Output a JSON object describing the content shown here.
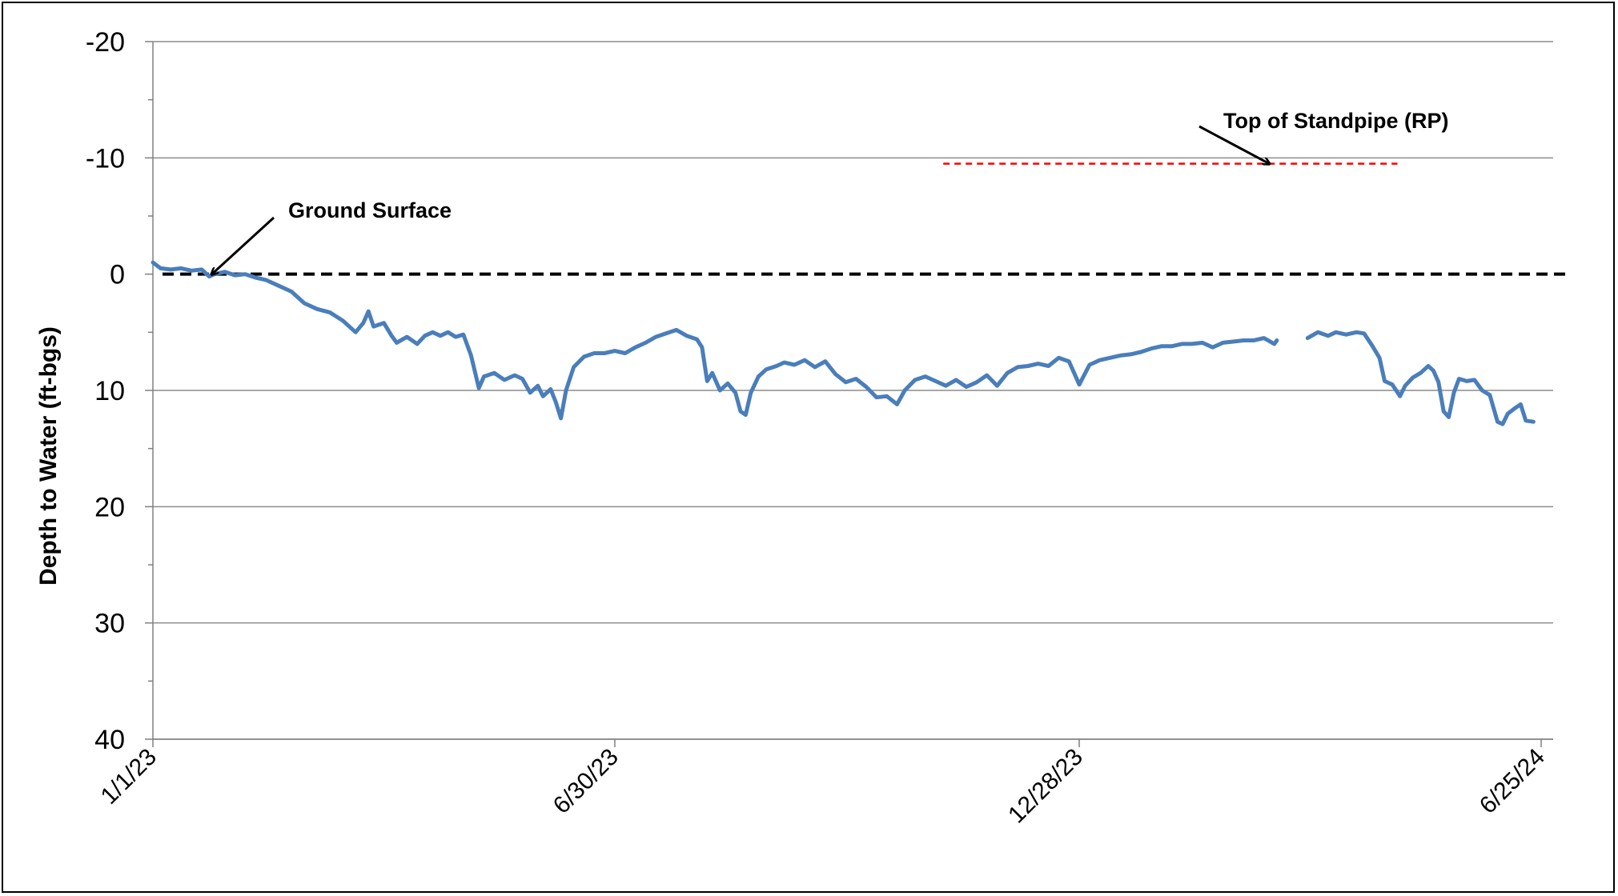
{
  "chart_data": {
    "type": "line",
    "title": "",
    "xlabel": "",
    "ylabel": "Depth to Water (ft-bgs)",
    "y_inverted": true,
    "ylim": [
      -20,
      40
    ],
    "yticks": [
      -20,
      -10,
      0,
      10,
      20,
      30,
      40
    ],
    "x_range": [
      "2023-01-01",
      "2024-06-25"
    ],
    "xticks": [
      {
        "date": "2023-01-01",
        "label": "1/1/23"
      },
      {
        "date": "2023-06-30",
        "label": "6/30/23"
      },
      {
        "date": "2023-12-28",
        "label": "12/28/23"
      },
      {
        "date": "2024-06-25",
        "label": "6/25/24"
      }
    ],
    "grid": true,
    "series": [
      {
        "color": "#4a7ebb",
        "segments": [
          [
            [
              "2023-01-01",
              -1.0
            ],
            [
              "2023-01-04",
              -0.5
            ],
            [
              "2023-01-08",
              -0.4
            ],
            [
              "2023-01-12",
              -0.5
            ],
            [
              "2023-01-16",
              -0.3
            ],
            [
              "2023-01-20",
              -0.4
            ],
            [
              "2023-01-23",
              0.2
            ],
            [
              "2023-01-25",
              0.0
            ],
            [
              "2023-01-29",
              -0.2
            ],
            [
              "2023-02-02",
              0.1
            ],
            [
              "2023-02-06",
              0.0
            ],
            [
              "2023-02-10",
              0.3
            ],
            [
              "2023-02-14",
              0.5
            ],
            [
              "2023-02-19",
              1.0
            ],
            [
              "2023-02-24",
              1.5
            ],
            [
              "2023-03-01",
              2.5
            ],
            [
              "2023-03-06",
              3.0
            ],
            [
              "2023-03-11",
              3.3
            ],
            [
              "2023-03-16",
              4.0
            ],
            [
              "2023-03-21",
              5.0
            ],
            [
              "2023-03-24",
              4.2
            ],
            [
              "2023-03-26",
              3.2
            ],
            [
              "2023-03-28",
              4.5
            ],
            [
              "2023-04-01",
              4.2
            ],
            [
              "2023-04-04",
              5.3
            ],
            [
              "2023-04-06",
              5.9
            ],
            [
              "2023-04-10",
              5.4
            ],
            [
              "2023-04-14",
              6.0
            ],
            [
              "2023-04-17",
              5.3
            ],
            [
              "2023-04-20",
              5.0
            ],
            [
              "2023-04-23",
              5.3
            ],
            [
              "2023-04-26",
              5.0
            ],
            [
              "2023-04-29",
              5.4
            ],
            [
              "2023-05-02",
              5.2
            ],
            [
              "2023-05-05",
              7.0
            ],
            [
              "2023-05-08",
              9.8
            ],
            [
              "2023-05-10",
              8.8
            ],
            [
              "2023-05-14",
              8.5
            ],
            [
              "2023-05-18",
              9.1
            ],
            [
              "2023-05-22",
              8.7
            ],
            [
              "2023-05-25",
              9.0
            ],
            [
              "2023-05-28",
              10.2
            ],
            [
              "2023-05-31",
              9.6
            ],
            [
              "2023-06-02",
              10.5
            ],
            [
              "2023-06-05",
              9.9
            ],
            [
              "2023-06-07",
              11.0
            ],
            [
              "2023-06-09",
              12.4
            ],
            [
              "2023-06-11",
              10.0
            ],
            [
              "2023-06-14",
              8.0
            ],
            [
              "2023-06-18",
              7.1
            ],
            [
              "2023-06-22",
              6.8
            ],
            [
              "2023-06-26",
              6.8
            ],
            [
              "2023-06-30",
              6.6
            ],
            [
              "2023-07-04",
              6.8
            ],
            [
              "2023-07-08",
              6.3
            ],
            [
              "2023-07-12",
              5.9
            ],
            [
              "2023-07-16",
              5.4
            ],
            [
              "2023-07-20",
              5.1
            ],
            [
              "2023-07-24",
              4.8
            ],
            [
              "2023-07-28",
              5.3
            ],
            [
              "2023-08-01",
              5.6
            ],
            [
              "2023-08-03",
              6.3
            ],
            [
              "2023-08-05",
              9.2
            ],
            [
              "2023-08-07",
              8.5
            ],
            [
              "2023-08-10",
              10.0
            ],
            [
              "2023-08-13",
              9.4
            ],
            [
              "2023-08-16",
              10.2
            ],
            [
              "2023-08-18",
              11.8
            ],
            [
              "2023-08-20",
              12.1
            ],
            [
              "2023-08-22",
              10.2
            ],
            [
              "2023-08-25",
              8.8
            ],
            [
              "2023-08-28",
              8.2
            ],
            [
              "2023-09-01",
              7.9
            ],
            [
              "2023-09-04",
              7.6
            ],
            [
              "2023-09-08",
              7.8
            ],
            [
              "2023-09-12",
              7.4
            ],
            [
              "2023-09-16",
              8.0
            ],
            [
              "2023-09-20",
              7.5
            ],
            [
              "2023-09-24",
              8.6
            ],
            [
              "2023-09-28",
              9.3
            ],
            [
              "2023-10-02",
              9.0
            ],
            [
              "2023-10-06",
              9.7
            ],
            [
              "2023-10-10",
              10.6
            ],
            [
              "2023-10-14",
              10.5
            ],
            [
              "2023-10-18",
              11.2
            ],
            [
              "2023-10-21",
              10.0
            ],
            [
              "2023-10-25",
              9.1
            ],
            [
              "2023-10-29",
              8.8
            ],
            [
              "2023-11-02",
              9.2
            ],
            [
              "2023-11-06",
              9.6
            ],
            [
              "2023-11-10",
              9.1
            ],
            [
              "2023-11-14",
              9.7
            ],
            [
              "2023-11-18",
              9.3
            ],
            [
              "2023-11-22",
              8.7
            ],
            [
              "2023-11-26",
              9.6
            ],
            [
              "2023-11-30",
              8.5
            ],
            [
              "2023-12-04",
              8.0
            ],
            [
              "2023-12-08",
              7.9
            ],
            [
              "2023-12-12",
              7.7
            ],
            [
              "2023-12-16",
              7.9
            ],
            [
              "2023-12-20",
              7.2
            ],
            [
              "2023-12-24",
              7.5
            ],
            [
              "2023-12-28",
              9.5
            ],
            [
              "2024-01-01",
              7.8
            ],
            [
              "2024-01-05",
              7.4
            ],
            [
              "2024-01-09",
              7.2
            ],
            [
              "2024-01-13",
              7.0
            ],
            [
              "2024-01-17",
              6.9
            ],
            [
              "2024-01-21",
              6.7
            ],
            [
              "2024-01-25",
              6.4
            ],
            [
              "2024-01-29",
              6.2
            ],
            [
              "2024-02-02",
              6.2
            ],
            [
              "2024-02-06",
              6.0
            ],
            [
              "2024-02-10",
              6.0
            ],
            [
              "2024-02-14",
              5.9
            ],
            [
              "2024-02-18",
              6.3
            ],
            [
              "2024-02-22",
              5.9
            ],
            [
              "2024-02-26",
              5.8
            ],
            [
              "2024-03-01",
              5.7
            ],
            [
              "2024-03-05",
              5.7
            ],
            [
              "2024-03-09",
              5.5
            ],
            [
              "2024-03-13",
              6.0
            ],
            [
              "2024-03-14",
              5.7
            ]
          ],
          [
            [
              "2024-03-26",
              5.5
            ],
            [
              "2024-03-30",
              5.0
            ],
            [
              "2024-04-03",
              5.3
            ],
            [
              "2024-04-06",
              5.0
            ],
            [
              "2024-04-10",
              5.2
            ],
            [
              "2024-04-14",
              5.0
            ],
            [
              "2024-04-17",
              5.1
            ],
            [
              "2024-04-20",
              6.1
            ],
            [
              "2024-04-23",
              7.2
            ],
            [
              "2024-04-25",
              9.2
            ],
            [
              "2024-04-28",
              9.5
            ],
            [
              "2024-05-01",
              10.5
            ],
            [
              "2024-05-03",
              9.6
            ],
            [
              "2024-05-06",
              8.9
            ],
            [
              "2024-05-09",
              8.5
            ],
            [
              "2024-05-12",
              7.9
            ],
            [
              "2024-05-14",
              8.3
            ],
            [
              "2024-05-16",
              9.3
            ],
            [
              "2024-05-18",
              11.8
            ],
            [
              "2024-05-20",
              12.3
            ],
            [
              "2024-05-22",
              10.2
            ],
            [
              "2024-05-24",
              9.0
            ],
            [
              "2024-05-27",
              9.2
            ],
            [
              "2024-05-30",
              9.1
            ],
            [
              "2024-06-02",
              10.0
            ],
            [
              "2024-06-05",
              10.4
            ],
            [
              "2024-06-08",
              12.7
            ],
            [
              "2024-06-10",
              12.9
            ],
            [
              "2024-06-12",
              12.0
            ],
            [
              "2024-06-15",
              11.5
            ],
            [
              "2024-06-17",
              11.2
            ],
            [
              "2024-06-19",
              12.6
            ],
            [
              "2024-06-22",
              12.7
            ]
          ]
        ]
      }
    ],
    "reference_lines": [
      {
        "name": "ground_surface",
        "y": 0,
        "color": "#000000",
        "style": "dashed"
      },
      {
        "name": "top_of_standpipe",
        "y": -9.5,
        "x_start": "2023-11-05",
        "x_end": "2024-04-30",
        "color": "#ff0000",
        "style": "dashed"
      }
    ],
    "annotations": [
      {
        "id": "ground",
        "text": "Ground Surface",
        "arrow_to": [
          "2023-01-24",
          0
        ]
      },
      {
        "id": "standpipe",
        "text": "Top of Standpipe (RP)",
        "arrow_to": [
          "2024-03-11",
          -9.5
        ]
      }
    ]
  }
}
